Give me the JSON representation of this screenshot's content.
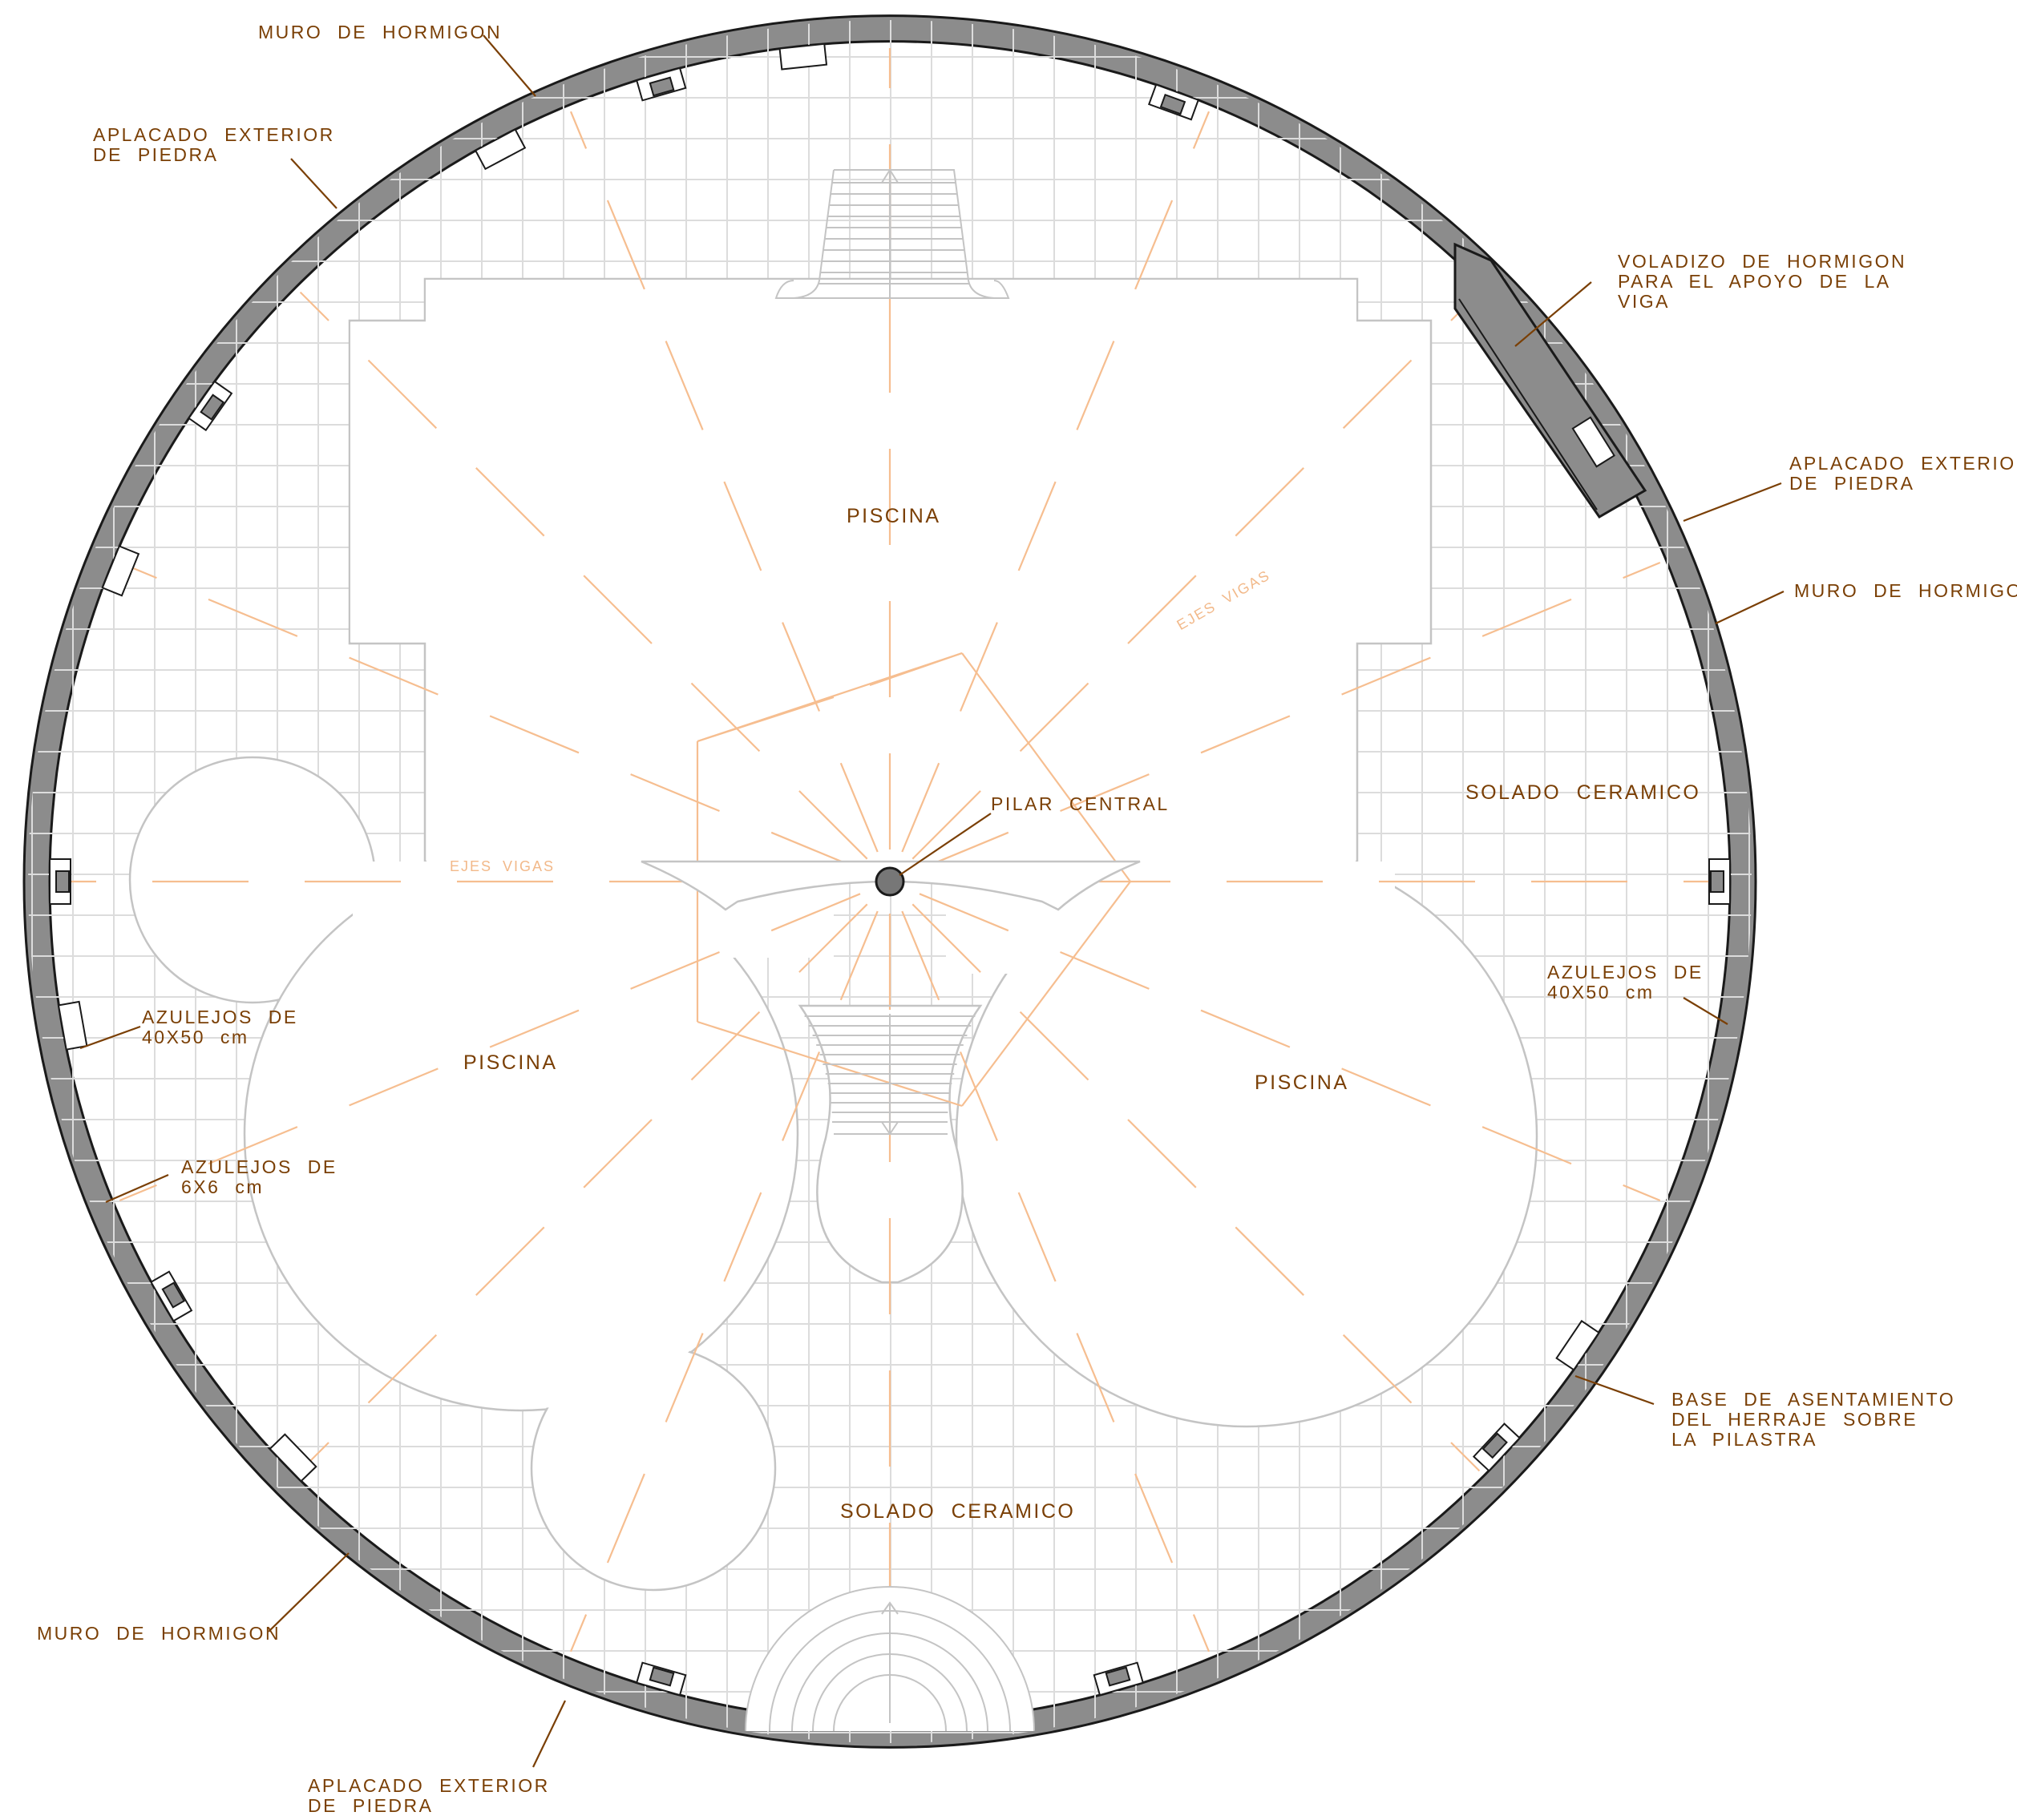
{
  "plan": {
    "rooms": {
      "pool_top": "PISCINA",
      "pool_left": "PISCINA",
      "pool_right": "PISCINA",
      "floor_right": "SOLADO CERAMICO",
      "floor_bottom": "SOLADO CERAMICO"
    },
    "axis_labels": {
      "horizontal": "EJES VIGAS",
      "diagonal": "EJES VIGAS"
    },
    "callouts": {
      "muro_top": [
        "MURO DE HORMIGON"
      ],
      "aplacado_top_left": [
        "APLACADO EXTERIOR",
        "DE PIEDRA"
      ],
      "voladizo": [
        "VOLADIZO DE HORMIGON",
        "PARA EL APOYO DE LA",
        "VIGA"
      ],
      "aplacado_right": [
        "APLACADO EXTERIOR",
        "DE PIEDRA"
      ],
      "muro_right": [
        "MURO DE HORMIGON"
      ],
      "pilar_central": [
        "PILAR CENTRAL"
      ],
      "azulejos_right": [
        "AZULEJOS DE",
        "40X50 cm"
      ],
      "azulejos_left_40": [
        "AZULEJOS DE",
        "40X50 cm"
      ],
      "azulejos_left_6": [
        "AZULEJOS DE",
        "6X6 cm"
      ],
      "base_asentamiento": [
        "BASE DE ASENTAMIENTO",
        "DEL HERRAJE SOBRE",
        "LA PILASTRA"
      ],
      "muro_bottom_left": [
        "MURO DE HORMIGON"
      ],
      "aplacado_bottom": [
        "APLACADO EXTERIOR",
        "DE PIEDRA"
      ]
    },
    "colors": {
      "wall_fill": "#8c8c8c",
      "wall_stroke": "#1a1a1a",
      "tile_grid": "#dcdcdc",
      "outline": "#c4c4c4",
      "beam_axes": "#f6be90",
      "label_text": "#7a3f05",
      "leader": "#7a3f05"
    }
  }
}
